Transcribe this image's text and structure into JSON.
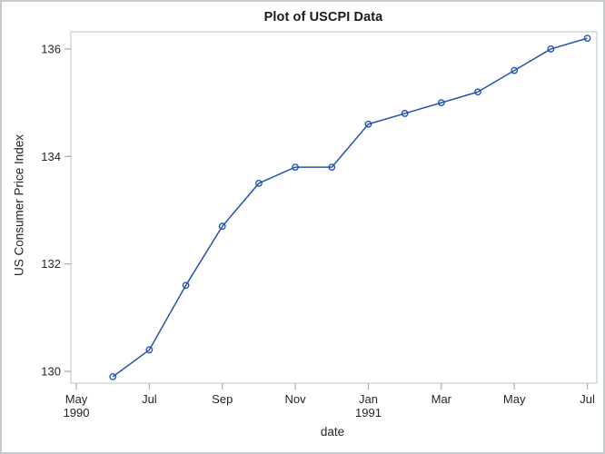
{
  "figure": {
    "title": "Plot of USCPI Data"
  },
  "chart_data": {
    "type": "line",
    "title": "Plot of USCPI Data",
    "xlabel": "date",
    "ylabel": "US Consumer Price Index",
    "legend": "none",
    "grid": false,
    "framed": true,
    "marker": "open-circle",
    "colors": {
      "line": "#2553b4",
      "marker": "#2553b4",
      "frame": "#ccd1d5",
      "tick": "#a9b2b8",
      "text": "#262626",
      "border": "#c5cacd",
      "background": "#ffffff"
    },
    "x_axis_unit": "months since May 1990",
    "xlim": [
      -0.15,
      14.26
    ],
    "ylim": [
      129.78,
      136.32
    ],
    "y_ticks": [
      {
        "value": 130,
        "label": "130"
      },
      {
        "value": 132,
        "label": "132"
      },
      {
        "value": 134,
        "label": "134"
      },
      {
        "value": 136,
        "label": "136"
      }
    ],
    "x_ticks": [
      {
        "pos": 0,
        "label": "May",
        "sublabel": "1990"
      },
      {
        "pos": 2,
        "label": "Jul",
        "sublabel": ""
      },
      {
        "pos": 4,
        "label": "Sep",
        "sublabel": ""
      },
      {
        "pos": 6,
        "label": "Nov",
        "sublabel": ""
      },
      {
        "pos": 8,
        "label": "Jan",
        "sublabel": "1991"
      },
      {
        "pos": 10,
        "label": "Mar",
        "sublabel": ""
      },
      {
        "pos": 12,
        "label": "May",
        "sublabel": ""
      },
      {
        "pos": 14,
        "label": "Jul",
        "sublabel": ""
      }
    ],
    "series": [
      {
        "name": "USCPI",
        "points": [
          {
            "date": "Jun 1990",
            "pos": 1,
            "value": 129.9
          },
          {
            "date": "Jul 1990",
            "pos": 2,
            "value": 130.4
          },
          {
            "date": "Aug 1990",
            "pos": 3,
            "value": 131.6
          },
          {
            "date": "Sep 1990",
            "pos": 4,
            "value": 132.7
          },
          {
            "date": "Oct 1990",
            "pos": 5,
            "value": 133.5
          },
          {
            "date": "Nov 1990",
            "pos": 6,
            "value": 133.8
          },
          {
            "date": "Dec 1990",
            "pos": 7,
            "value": 133.8
          },
          {
            "date": "Jan 1991",
            "pos": 8,
            "value": 134.6
          },
          {
            "date": "Feb 1991",
            "pos": 9,
            "value": 134.8
          },
          {
            "date": "Mar 1991",
            "pos": 10,
            "value": 135.0
          },
          {
            "date": "Apr 1991",
            "pos": 11,
            "value": 135.2
          },
          {
            "date": "May 1991",
            "pos": 12,
            "value": 135.6
          },
          {
            "date": "Jun 1991",
            "pos": 13,
            "value": 136.0
          },
          {
            "date": "Jul 1991",
            "pos": 14,
            "value": 136.2
          }
        ]
      }
    ]
  }
}
